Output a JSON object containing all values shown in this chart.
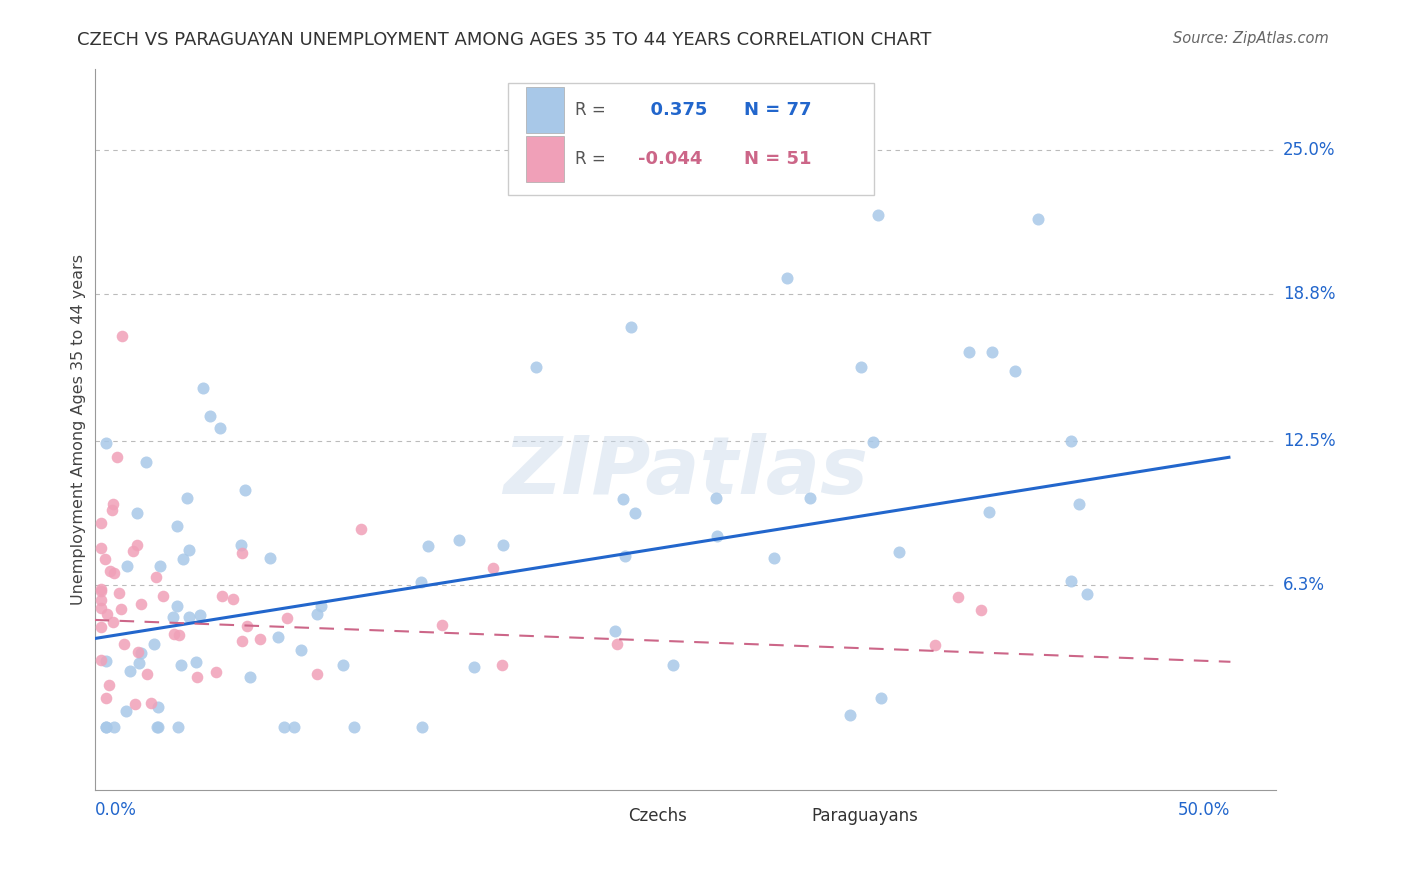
{
  "title": "CZECH VS PARAGUAYAN UNEMPLOYMENT AMONG AGES 35 TO 44 YEARS CORRELATION CHART",
  "source": "Source: ZipAtlas.com",
  "ylabel": "Unemployment Among Ages 35 to 44 years",
  "ytick_labels": [
    "25.0%",
    "18.8%",
    "12.5%",
    "6.3%"
  ],
  "ytick_values": [
    0.25,
    0.188,
    0.125,
    0.063
  ],
  "xtick_labels": [
    "0.0%",
    "50.0%"
  ],
  "xtick_values": [
    0.0,
    0.5
  ],
  "xlim": [
    0.0,
    0.52
  ],
  "ylim": [
    -0.025,
    0.285
  ],
  "czech_R": "0.375",
  "czech_N": "77",
  "paraguay_R": "-0.044",
  "paraguay_N": "51",
  "czech_color": "#a8c8e8",
  "czech_line_color": "#2266cc",
  "paraguay_color": "#f0a0b8",
  "paraguay_line_color": "#cc6688",
  "background_color": "#ffffff",
  "grid_color": "#bbbbbb",
  "watermark": "ZIPatlas",
  "title_fontsize": 13,
  "axis_label_color": "#2266cc",
  "source_color": "#666666"
}
